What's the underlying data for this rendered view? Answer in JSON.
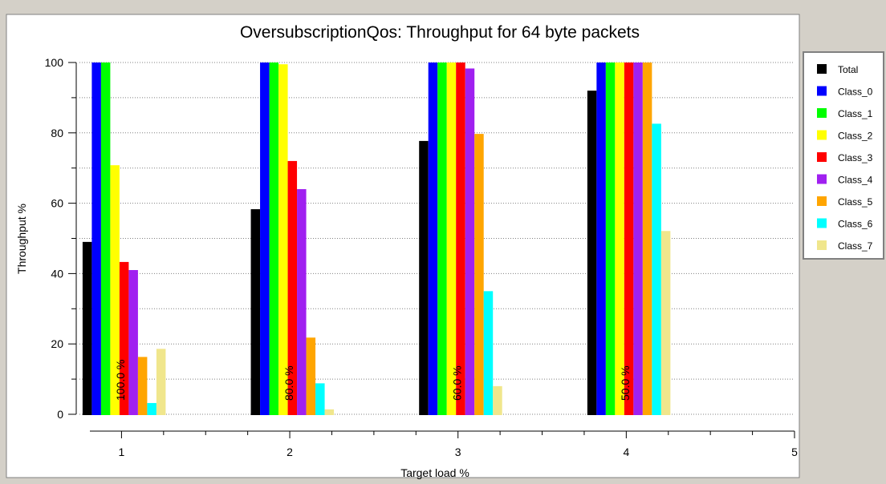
{
  "chart_data": {
    "type": "bar",
    "title": "OversubscriptionQos: Throughput for 64 byte packets",
    "xlabel": "Target load %",
    "ylabel": "Throughput %",
    "ylim": [
      0,
      100
    ],
    "xlim": [
      0.75,
      5
    ],
    "yticks": [
      0,
      20,
      40,
      60,
      80,
      100
    ],
    "xticks": [
      1,
      2,
      3,
      4,
      5
    ],
    "grid": "horizontal dotted",
    "legend_position": "right",
    "categories": [
      "1",
      "2",
      "3",
      "4"
    ],
    "annotations": [
      "100.0 %",
      "80.0 %",
      "60.0 %",
      "50.0 %"
    ],
    "series": [
      {
        "name": "Total",
        "color": "#000000",
        "values": [
          49,
          58.3,
          77.7,
          92
        ]
      },
      {
        "name": "Class_0",
        "color": "#0000ff",
        "values": [
          100,
          100,
          100,
          100
        ]
      },
      {
        "name": "Class_1",
        "color": "#00ff00",
        "values": [
          100,
          100,
          100,
          100
        ]
      },
      {
        "name": "Class_2",
        "color": "#ffff00",
        "values": [
          70.8,
          99.5,
          100,
          100
        ]
      },
      {
        "name": "Class_3",
        "color": "#ff0000",
        "values": [
          43.3,
          72,
          100,
          100
        ]
      },
      {
        "name": "Class_4",
        "color": "#a020f0",
        "values": [
          41,
          64,
          98.3,
          100
        ]
      },
      {
        "name": "Class_5",
        "color": "#ffa500",
        "values": [
          16.3,
          21.8,
          79.7,
          100
        ]
      },
      {
        "name": "Class_6",
        "color": "#00ffff",
        "values": [
          3.2,
          8.8,
          35,
          82.6
        ]
      },
      {
        "name": "Class_7",
        "color": "#f0e68c",
        "values": [
          18.6,
          1.4,
          8,
          52.1
        ]
      }
    ]
  }
}
